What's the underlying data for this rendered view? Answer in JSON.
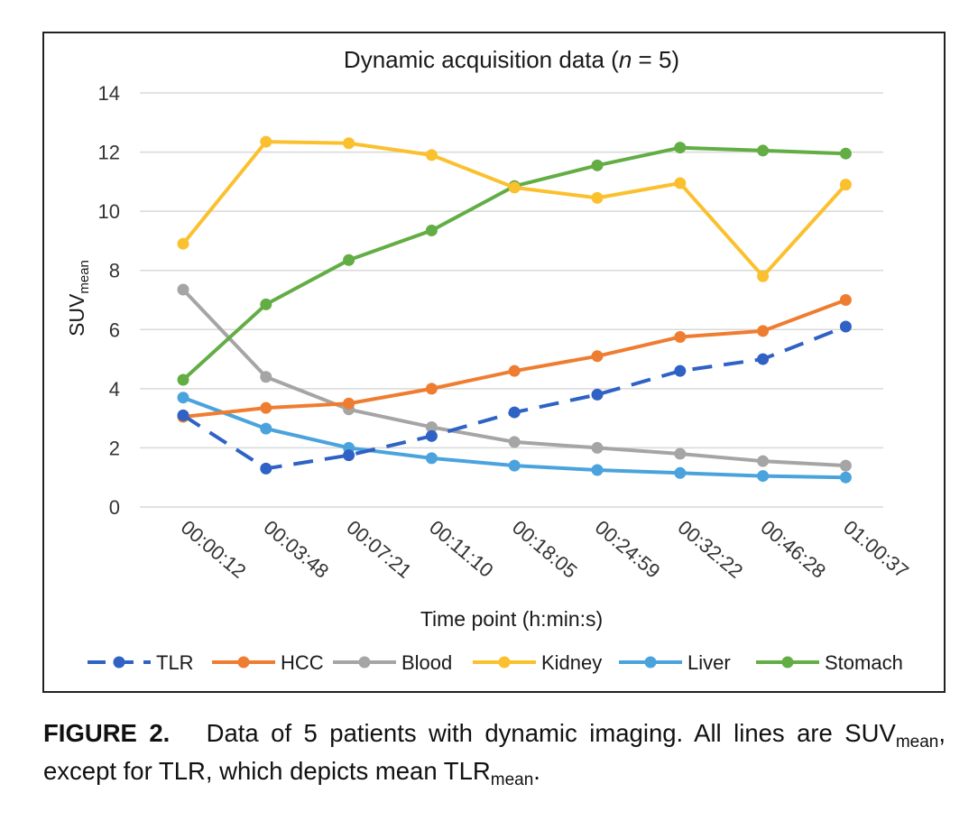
{
  "chart_data": {
    "type": "line",
    "title": "Dynamic acquisition data (",
    "title_n": "n",
    "title_suffix": " = 5)",
    "xlabel": "Time point (h:min:s)",
    "ylabel_main": "SUV",
    "ylabel_sub": "mean",
    "ylim": [
      0,
      14
    ],
    "yticks": [
      0,
      2,
      4,
      6,
      8,
      10,
      12,
      14
    ],
    "grid": true,
    "legend_position": "bottom",
    "categories": [
      "00:00:12",
      "00:03:48",
      "00:07:21",
      "00:11:10",
      "00:18:05",
      "00:24:59",
      "00:32:22",
      "00:46:28",
      "01:00:37"
    ],
    "series": [
      {
        "name": "TLR",
        "color": "#2f62c4",
        "dashed": true,
        "values": [
          3.1,
          1.3,
          1.75,
          2.4,
          3.2,
          3.8,
          4.6,
          5.0,
          6.1
        ]
      },
      {
        "name": "HCC",
        "color": "#ef7d31",
        "dashed": false,
        "values": [
          3.05,
          3.35,
          3.5,
          4.0,
          4.6,
          5.1,
          5.75,
          5.95,
          7.0
        ]
      },
      {
        "name": "Blood",
        "color": "#a5a5a5",
        "dashed": false,
        "values": [
          7.35,
          4.4,
          3.3,
          2.7,
          2.2,
          2.0,
          1.8,
          1.55,
          1.4
        ]
      },
      {
        "name": "Kidney",
        "color": "#fbc02e",
        "dashed": false,
        "values": [
          8.9,
          12.35,
          12.3,
          11.9,
          10.8,
          10.45,
          10.95,
          7.8,
          10.9
        ]
      },
      {
        "name": "Liver",
        "color": "#4aa3dd",
        "dashed": false,
        "values": [
          3.7,
          2.65,
          2.0,
          1.65,
          1.4,
          1.25,
          1.15,
          1.05,
          1.0
        ]
      },
      {
        "name": "Stomach",
        "color": "#63ad45",
        "dashed": false,
        "values": [
          4.3,
          6.85,
          8.35,
          9.35,
          10.85,
          11.55,
          12.15,
          12.05,
          11.95
        ]
      }
    ]
  },
  "caption": {
    "label": "FIGURE 2.",
    "text_1": "Data of 5 patients with dynamic imaging. All lines are SUV",
    "sub_1": "mean",
    "text_2": ", except for TLR, which depicts mean TLR",
    "sub_2": "mean",
    "text_3": "."
  }
}
